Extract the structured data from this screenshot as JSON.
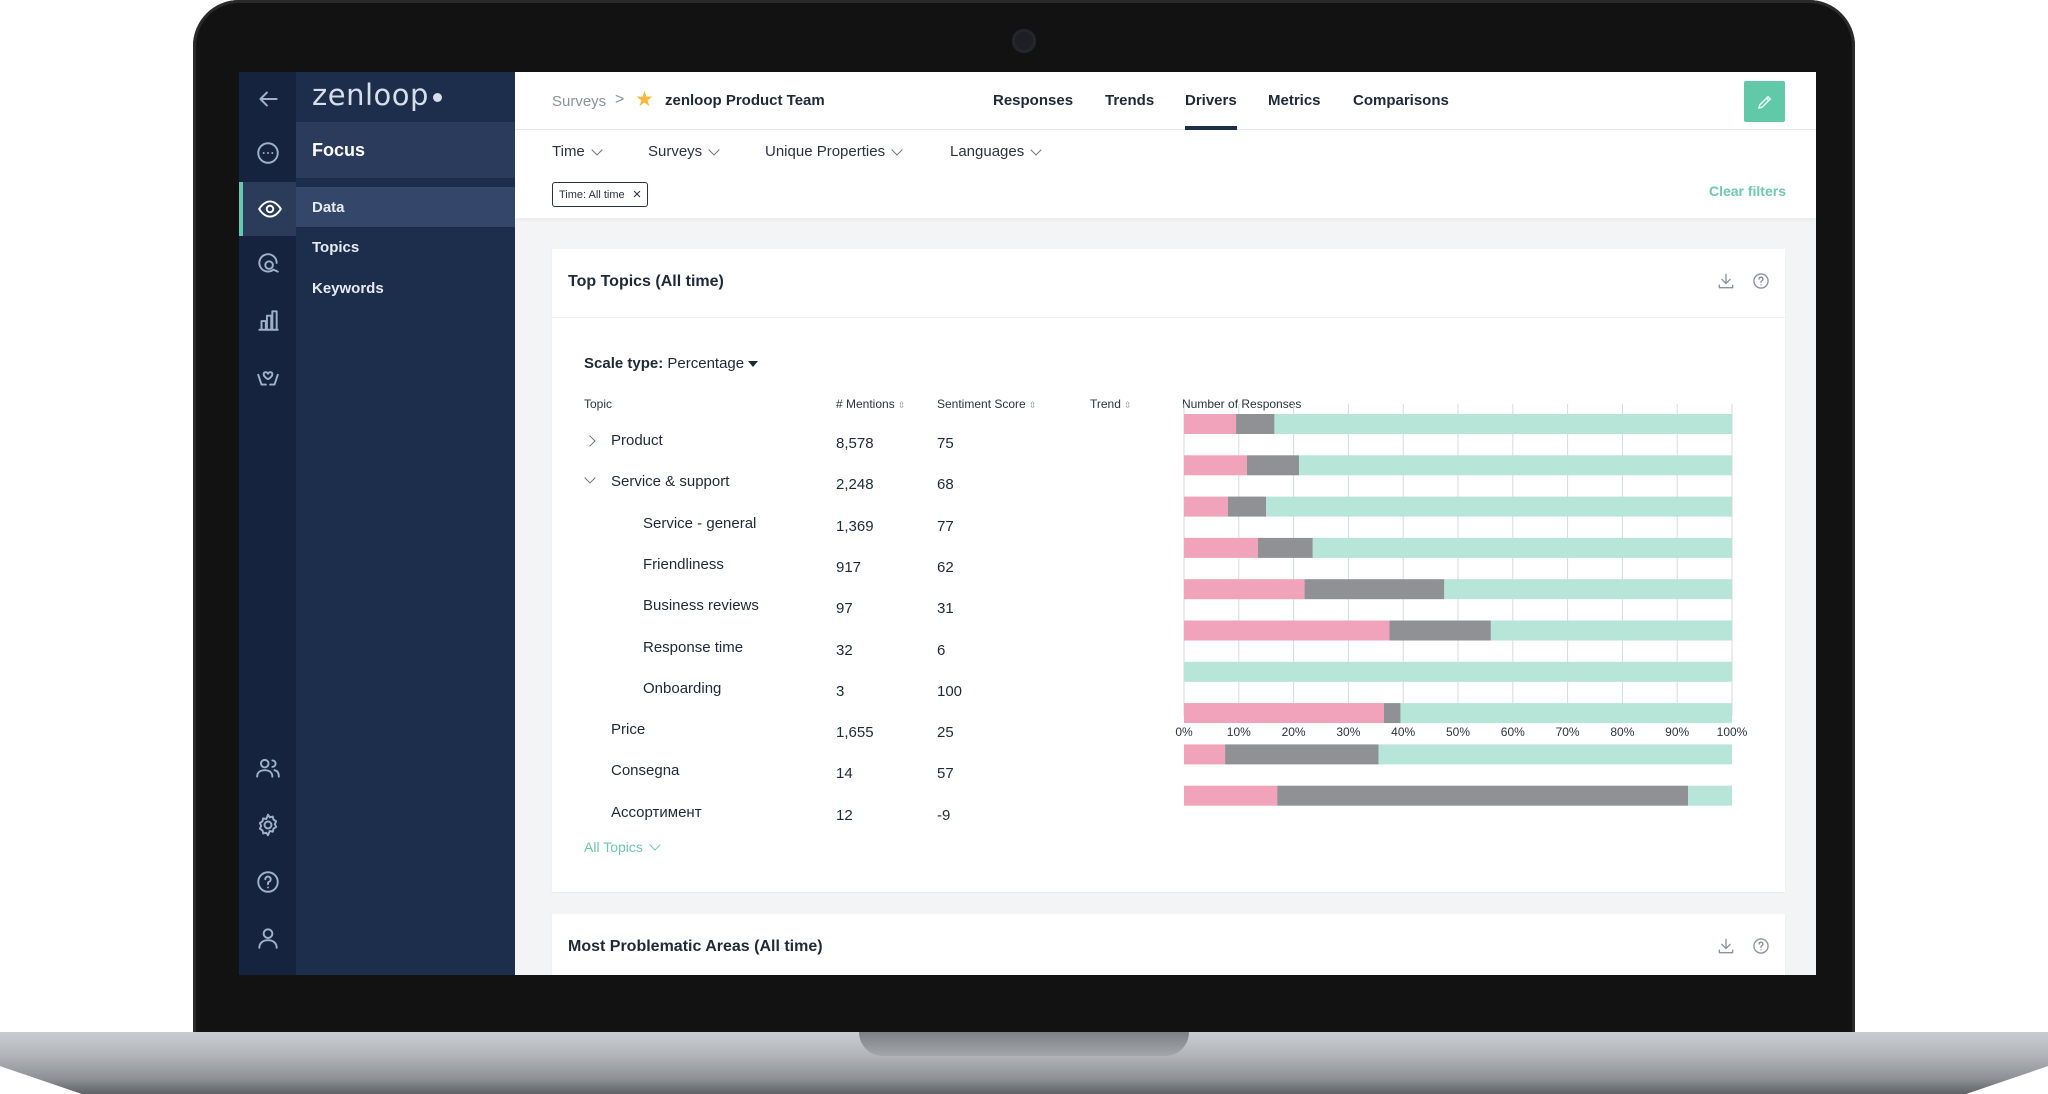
{
  "app": {
    "brand": "zenloop",
    "nav_title": "Focus",
    "nav_items": [
      "Data",
      "Topics",
      "Keywords"
    ]
  },
  "rail_icons": {
    "top": [
      "back-arrow-icon",
      "chat-bubble-icon",
      "eye-icon",
      "search-chat-icon",
      "bar-chart-icon",
      "hands-heart-icon"
    ],
    "bottom": [
      "users-icon",
      "gear-icon",
      "help-icon",
      "user-icon"
    ]
  },
  "header": {
    "breadcrumb_root": "Surveys",
    "breadcrumb_separator": ">",
    "survey_name": "zenloop Product Team",
    "tabs": [
      "Responses",
      "Trends",
      "Drivers",
      "Metrics",
      "Comparisons"
    ],
    "active_tab": "Drivers"
  },
  "filters": {
    "items": [
      "Time",
      "Surveys",
      "Unique Properties",
      "Languages"
    ],
    "active_chip": "Time: All time",
    "chip_close": "×",
    "clear_label": "Clear filters"
  },
  "top_topics": {
    "title": "Top Topics (All time)",
    "scale_label": "Scale type:",
    "scale_value": "Percentage",
    "columns": {
      "topic": "Topic",
      "mentions": "# Mentions",
      "sentiment": "Sentiment Score",
      "trend": "Trend",
      "responses": "Number of Responses"
    },
    "rows": [
      {
        "name": "Product",
        "mentions": "8,578",
        "score": "75",
        "level": 0,
        "toggle": "collapsed"
      },
      {
        "name": "Service & support",
        "mentions": "2,248",
        "score": "68",
        "level": 0,
        "toggle": "expanded"
      },
      {
        "name": "Service - general",
        "mentions": "1,369",
        "score": "77",
        "level": 1,
        "toggle": ""
      },
      {
        "name": "Friendliness",
        "mentions": "917",
        "score": "62",
        "level": 1,
        "toggle": ""
      },
      {
        "name": "Business reviews",
        "mentions": "97",
        "score": "31",
        "level": 1,
        "toggle": ""
      },
      {
        "name": "Response time",
        "mentions": "32",
        "score": "6",
        "level": 1,
        "toggle": ""
      },
      {
        "name": "Onboarding",
        "mentions": "3",
        "score": "100",
        "level": 1,
        "toggle": ""
      },
      {
        "name": "Price",
        "mentions": "1,655",
        "score": "25",
        "level": 0,
        "toggle": ""
      },
      {
        "name": "Consegna",
        "mentions": "14",
        "score": "57",
        "level": 0,
        "toggle": ""
      },
      {
        "name": "Ассортимент",
        "mentions": "12",
        "score": "-9",
        "level": 0,
        "toggle": ""
      }
    ],
    "all_topics_label": "All Topics"
  },
  "problematic": {
    "title": "Most Problematic Areas (All time)"
  },
  "chart_data": {
    "type": "bar",
    "stacked": true,
    "orientation": "horizontal",
    "categories": [
      "Product",
      "Service & support",
      "Service - general",
      "Friendliness",
      "Business reviews",
      "Response time",
      "Onboarding",
      "Price",
      "Consegna",
      "Ассортимент"
    ],
    "series": [
      {
        "color": "#f0a3bb",
        "values": [
          9.5,
          11.5,
          8,
          13.5,
          22,
          37.5,
          0,
          36.5,
          7.5,
          17
        ]
      },
      {
        "color": "#8f9194",
        "values": [
          7,
          9.5,
          7,
          10,
          25.5,
          18.5,
          0,
          3,
          28,
          75
        ]
      },
      {
        "color": "#b7e6d9",
        "values": [
          83.5,
          79,
          85,
          76.5,
          52.5,
          44,
          100,
          60.5,
          64.5,
          8
        ]
      }
    ],
    "xlim": [
      0,
      100
    ],
    "x_ticks": [
      "0%",
      "10%",
      "20%",
      "30%",
      "40%",
      "50%",
      "60%",
      "70%",
      "80%",
      "90%",
      "100%"
    ],
    "xlabel": "Number of Responses",
    "grid": true
  }
}
